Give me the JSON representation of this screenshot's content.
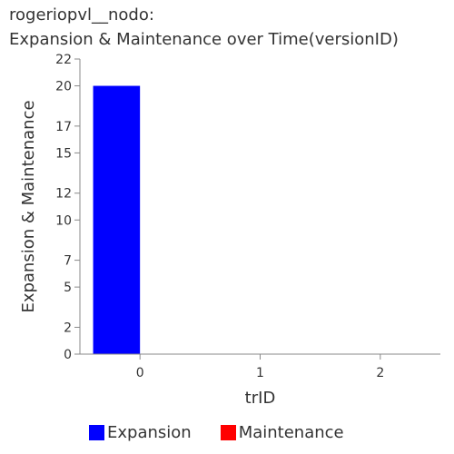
{
  "chart_data": {
    "type": "bar",
    "title_lines": [
      "rogeriopvl__nodo:",
      "Expansion & Maintenance over Time(versionID)"
    ],
    "xlabel": "trID",
    "ylabel": "Expansion & Maintenance",
    "categories": [
      "0",
      "1",
      "2"
    ],
    "series": [
      {
        "name": "Expansion",
        "color": "#0000ff",
        "values": [
          20,
          0,
          0
        ]
      },
      {
        "name": "Maintenance",
        "color": "#ff0000",
        "values": [
          0,
          0,
          0
        ]
      }
    ],
    "ylim": [
      0,
      22
    ],
    "yticks": [
      0,
      2,
      5,
      7,
      10,
      12,
      15,
      17,
      20,
      22
    ],
    "grid": false,
    "legend_position": "bottom"
  }
}
